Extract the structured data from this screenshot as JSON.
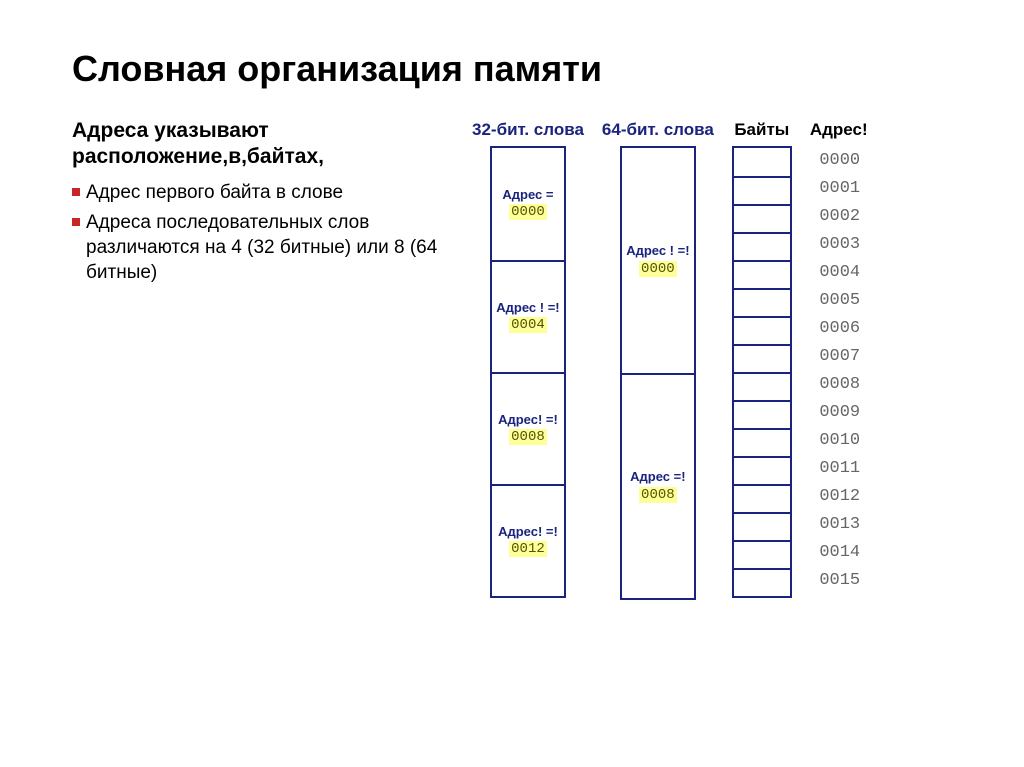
{
  "colors": {
    "title": "#000000",
    "header32": "#1a237e",
    "header64": "#1a237e",
    "headerBytes": "#000000",
    "border": "#1a237e",
    "addrLabel": "#1a237e",
    "addrValBg": "#ffff99",
    "addrValText": "#555500",
    "byteAddrText": "#666666",
    "bulletSquare": "#c62828"
  },
  "title": "Словная организация памяти",
  "subtitle": "Адреса указывают расположение,в,байтах,",
  "bullets": [
    "Адрес первого байта в слове",
    "Адреса последовательных слов различаются на 4 (32 битные) или 8 (64 битные)"
  ],
  "layout": {
    "cell32_h": 112,
    "cell64_h": 225,
    "byte_h": 28
  },
  "col32": {
    "header": "32-бит. слова",
    "cells": [
      {
        "label": "Адрес =",
        "val": "0000"
      },
      {
        "label": "Адрес ! =!",
        "val": "0004"
      },
      {
        "label": "Адрес! =!",
        "val": "0008"
      },
      {
        "label": "Адрес! =!",
        "val": "0012"
      }
    ]
  },
  "col64": {
    "header": "64-бит. слова",
    "cells": [
      {
        "label": "Адрес ! =!",
        "val": "0000"
      },
      {
        "label": "Адрес =!",
        "val": "0008"
      }
    ]
  },
  "colBytes": {
    "header": "Байты",
    "count": 16
  },
  "colAddr": {
    "header": "Адрес!",
    "items": [
      "0000",
      "0001",
      "0002",
      "0003",
      "0004",
      "0005",
      "0006",
      "0007",
      "0008",
      "0009",
      "0010",
      "0011",
      "0012",
      "0013",
      "0014",
      "0015"
    ]
  }
}
